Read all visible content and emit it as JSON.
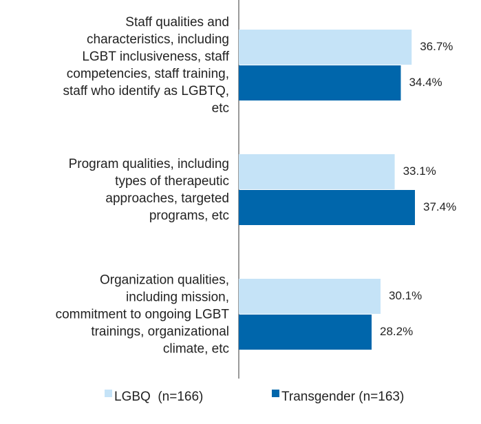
{
  "chart_data": {
    "type": "bar",
    "orientation": "horizontal",
    "categories": [
      "Staff qualities and\ncharacteristics, including\nLGBT inclusiveness, staff\ncompetencies, staff training,\nstaff who identify as LGBTQ,\netc",
      "Program qualities, including\ntypes of therapeutic\napproaches, targeted\nprograms, etc",
      "Organization qualities,\nincluding mission,\ncommitment to ongoing LGBT\ntrainings, organizational\nclimate, etc"
    ],
    "series": [
      {
        "name": "LGBQ  (n=166)",
        "color": "#c5e3f7",
        "values": [
          36.7,
          33.1,
          30.1
        ],
        "value_labels": [
          "36.7%",
          "33.1%",
          "30.1%"
        ]
      },
      {
        "name": "Transgender (n=163)",
        "color": "#0066ab",
        "values": [
          34.4,
          37.4,
          28.2
        ],
        "value_labels": [
          "34.4%",
          "37.4%",
          "28.2%"
        ]
      }
    ]
  }
}
